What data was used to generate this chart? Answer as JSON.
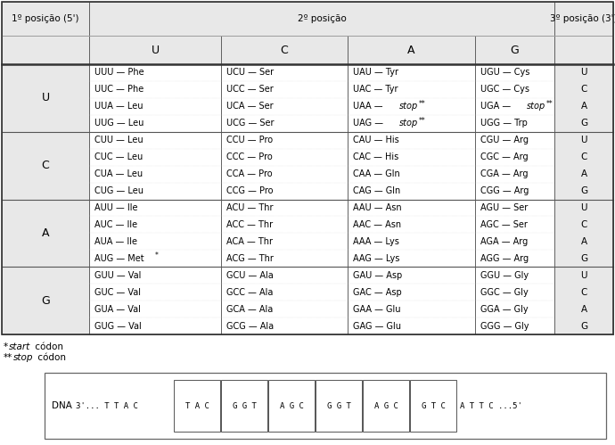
{
  "col1_header": "1º posição (5')",
  "col2_header": "2º posição",
  "col3_header": "3º posição (3')",
  "bases2": [
    "U",
    "C",
    "A",
    "G"
  ],
  "bases1": [
    "U",
    "C",
    "A",
    "G"
  ],
  "codons": {
    "U": {
      "U": [
        [
          "UUU",
          "Phe",
          ""
        ],
        [
          "UUC",
          "Phe",
          ""
        ],
        [
          "UUA",
          "Leu",
          ""
        ],
        [
          "UUG",
          "Leu",
          ""
        ]
      ],
      "C": [
        [
          "UCU",
          "Ser",
          ""
        ],
        [
          "UCC",
          "Ser",
          ""
        ],
        [
          "UCA",
          "Ser",
          ""
        ],
        [
          "UCG",
          "Ser",
          ""
        ]
      ],
      "A": [
        [
          "UAU",
          "Tyr",
          ""
        ],
        [
          "UAC",
          "Tyr",
          ""
        ],
        [
          "UAA",
          "stop",
          "**"
        ],
        [
          "UAG",
          "stop",
          "**"
        ]
      ],
      "G": [
        [
          "UGU",
          "Cys",
          ""
        ],
        [
          "UGC",
          "Cys",
          ""
        ],
        [
          "UGA",
          "stop",
          "**"
        ],
        [
          "UGG",
          "Trp",
          ""
        ]
      ]
    },
    "C": {
      "U": [
        [
          "CUU",
          "Leu",
          ""
        ],
        [
          "CUC",
          "Leu",
          ""
        ],
        [
          "CUA",
          "Leu",
          ""
        ],
        [
          "CUG",
          "Leu",
          ""
        ]
      ],
      "C": [
        [
          "CCU",
          "Pro",
          ""
        ],
        [
          "CCC",
          "Pro",
          ""
        ],
        [
          "CCA",
          "Pro",
          ""
        ],
        [
          "CCG",
          "Pro",
          ""
        ]
      ],
      "A": [
        [
          "CAU",
          "His",
          ""
        ],
        [
          "CAC",
          "His",
          ""
        ],
        [
          "CAA",
          "Gln",
          ""
        ],
        [
          "CAG",
          "Gln",
          ""
        ]
      ],
      "G": [
        [
          "CGU",
          "Arg",
          ""
        ],
        [
          "CGC",
          "Arg",
          ""
        ],
        [
          "CGA",
          "Arg",
          ""
        ],
        [
          "CGG",
          "Arg",
          ""
        ]
      ]
    },
    "A": {
      "U": [
        [
          "AUU",
          "Ile",
          ""
        ],
        [
          "AUC",
          "Ile",
          ""
        ],
        [
          "AUA",
          "Ile",
          ""
        ],
        [
          "AUG",
          "Met",
          "*"
        ]
      ],
      "C": [
        [
          "ACU",
          "Thr",
          ""
        ],
        [
          "ACC",
          "Thr",
          ""
        ],
        [
          "ACA",
          "Thr",
          ""
        ],
        [
          "ACG",
          "Thr",
          ""
        ]
      ],
      "A": [
        [
          "AAU",
          "Asn",
          ""
        ],
        [
          "AAC",
          "Asn",
          ""
        ],
        [
          "AAA",
          "Lys",
          ""
        ],
        [
          "AAG",
          "Lys",
          ""
        ]
      ],
      "G": [
        [
          "AGU",
          "Ser",
          ""
        ],
        [
          "AGC",
          "Ser",
          ""
        ],
        [
          "AGA",
          "Arg",
          ""
        ],
        [
          "AGG",
          "Arg",
          ""
        ]
      ]
    },
    "G": {
      "U": [
        [
          "GUU",
          "Val",
          ""
        ],
        [
          "GUC",
          "Val",
          ""
        ],
        [
          "GUA",
          "Val",
          ""
        ],
        [
          "GUG",
          "Val",
          ""
        ]
      ],
      "C": [
        [
          "GCU",
          "Ala",
          ""
        ],
        [
          "GCC",
          "Ala",
          ""
        ],
        [
          "GCA",
          "Ala",
          ""
        ],
        [
          "GCG",
          "Ala",
          ""
        ]
      ],
      "A": [
        [
          "GAU",
          "Asp",
          ""
        ],
        [
          "GAC",
          "Asp",
          ""
        ],
        [
          "GAA",
          "Glu",
          ""
        ],
        [
          "GAG",
          "Glu",
          ""
        ]
      ],
      "G": [
        [
          "GGU",
          "Gly",
          ""
        ],
        [
          "GGC",
          "Gly",
          ""
        ],
        [
          "GGA",
          "Gly",
          ""
        ],
        [
          "GGG",
          "Gly",
          ""
        ]
      ]
    }
  },
  "dna_boxes": [
    "TAC",
    "GGT",
    "AGC",
    "GGT",
    "AGC",
    "GTC"
  ],
  "dna_seq_left": "3'... T T A C",
  "dna_seq_right": "A T T C ...5'",
  "header_bg": "#e8e8e8",
  "table_border": "#555555",
  "cell_border": "#aaaaaa",
  "thick_border": "#333333"
}
